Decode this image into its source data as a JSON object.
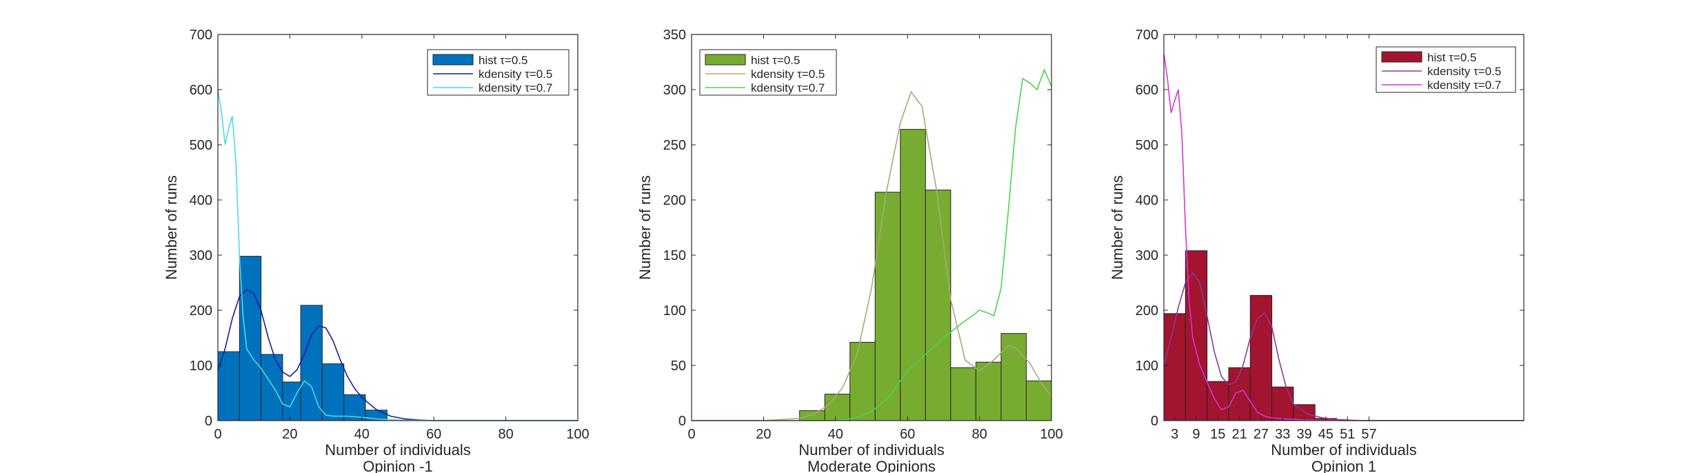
{
  "chart_data": [
    {
      "type": "bar",
      "bar_color": "#0072BD",
      "xlabel": "Number of individuals",
      "subtitle": "Opinion -1",
      "ylabel": "Number of runs",
      "xlim": [
        0,
        100
      ],
      "ylim": [
        0,
        700
      ],
      "xticks": [
        0,
        20,
        40,
        60,
        80,
        100
      ],
      "yticks": [
        0,
        100,
        200,
        300,
        400,
        500,
        600,
        700
      ],
      "grid": false,
      "legend_position": "top-right",
      "bins": [
        {
          "x0": 0,
          "x1": 6,
          "value": 125
        },
        {
          "x0": 6,
          "x1": 12,
          "value": 298
        },
        {
          "x0": 12,
          "x1": 18,
          "value": 120
        },
        {
          "x0": 18,
          "x1": 23,
          "value": 70
        },
        {
          "x0": 23,
          "x1": 29,
          "value": 209
        },
        {
          "x0": 29,
          "x1": 35,
          "value": 103
        },
        {
          "x0": 35,
          "x1": 41,
          "value": 47
        },
        {
          "x0": 41,
          "x1": 47,
          "value": 19
        }
      ],
      "series": [
        {
          "name": "kdensity τ=0.5",
          "color": "#1A1A9E",
          "x": [
            0,
            2,
            4,
            6,
            8,
            10,
            12,
            14,
            16,
            18,
            20,
            22,
            24,
            26,
            28,
            30,
            32,
            34,
            36,
            38,
            40,
            44,
            48,
            52,
            56,
            60,
            70,
            80,
            100
          ],
          "y": [
            90,
            130,
            185,
            225,
            238,
            230,
            200,
            150,
            110,
            88,
            80,
            92,
            120,
            155,
            172,
            168,
            145,
            110,
            80,
            58,
            42,
            20,
            8,
            3,
            1,
            0,
            0,
            0,
            0
          ]
        },
        {
          "name": "kdensity τ=0.7",
          "color": "#4DD9E6",
          "x": [
            0,
            1,
            2,
            3,
            4,
            5,
            6,
            7,
            8,
            10,
            12,
            14,
            16,
            18,
            20,
            22,
            24,
            26,
            28,
            30,
            32,
            36,
            40,
            44,
            50,
            60,
            70,
            80,
            100
          ],
          "y": [
            600,
            560,
            500,
            530,
            552,
            470,
            300,
            190,
            130,
            110,
            95,
            75,
            55,
            30,
            25,
            50,
            72,
            62,
            25,
            10,
            8,
            8,
            6,
            3,
            1,
            0,
            0,
            0,
            0
          ]
        }
      ],
      "legend": [
        "hist τ=0.5",
        "kdensity τ=0.5",
        "kdensity τ=0.7"
      ]
    },
    {
      "type": "bar",
      "bar_color": "#77AC30",
      "xlabel": "Number of individuals",
      "subtitle": "Moderate Opinions",
      "ylabel": "Number of runs",
      "xlim": [
        0,
        100
      ],
      "ylim": [
        0,
        350
      ],
      "xticks": [
        0,
        20,
        40,
        60,
        80,
        100
      ],
      "yticks": [
        0,
        50,
        100,
        150,
        200,
        250,
        300,
        350
      ],
      "grid": false,
      "legend_position": "top-left",
      "bins": [
        {
          "x0": 30,
          "x1": 37,
          "value": 9
        },
        {
          "x0": 37,
          "x1": 44,
          "value": 24
        },
        {
          "x0": 44,
          "x1": 51,
          "value": 71
        },
        {
          "x0": 51,
          "x1": 58,
          "value": 207
        },
        {
          "x0": 58,
          "x1": 65,
          "value": 264
        },
        {
          "x0": 65,
          "x1": 72,
          "value": 209
        },
        {
          "x0": 72,
          "x1": 79,
          "value": 48
        },
        {
          "x0": 79,
          "x1": 86,
          "value": 53
        },
        {
          "x0": 86,
          "x1": 93,
          "value": 79
        },
        {
          "x0": 93,
          "x1": 100,
          "value": 36
        }
      ],
      "series": [
        {
          "name": "kdensity τ=0.5",
          "color": "#A8A878",
          "x": [
            0,
            20,
            30,
            34,
            38,
            42,
            46,
            50,
            54,
            58,
            61,
            64,
            68,
            72,
            76,
            80,
            84,
            88,
            90,
            94,
            97,
            100
          ],
          "y": [
            0,
            0,
            2,
            6,
            14,
            30,
            60,
            120,
            205,
            270,
            298,
            285,
            210,
            110,
            55,
            45,
            55,
            68,
            66,
            52,
            35,
            22
          ]
        },
        {
          "name": "kdensity τ=0.7",
          "color": "#4DD24D",
          "x": [
            0,
            30,
            40,
            45,
            50,
            55,
            60,
            65,
            70,
            75,
            78,
            80,
            82,
            84,
            86,
            88,
            90,
            92,
            94,
            96,
            98,
            100
          ],
          "y": [
            0,
            0,
            0,
            2,
            8,
            22,
            45,
            60,
            75,
            88,
            95,
            100,
            98,
            95,
            120,
            190,
            265,
            310,
            306,
            300,
            318,
            303
          ]
        }
      ],
      "legend": [
        "hist τ=0.5",
        "kdensity τ=0.5",
        "kdensity τ=0.7"
      ]
    },
    {
      "type": "bar",
      "bar_color": "#A2142F",
      "xlabel": "Number of individuals",
      "subtitle": "Opinion 1",
      "ylabel": "Number of runs",
      "xlim": [
        0,
        100
      ],
      "ylim": [
        0,
        700
      ],
      "xticks": [
        3,
        9,
        15,
        21,
        27,
        33,
        39,
        45,
        51,
        57
      ],
      "yticks": [
        0,
        100,
        200,
        300,
        400,
        500,
        600,
        700
      ],
      "grid": false,
      "legend_position": "top-right",
      "bins": [
        {
          "x0": 0,
          "x1": 6,
          "value": 194
        },
        {
          "x0": 6,
          "x1": 12,
          "value": 308
        },
        {
          "x0": 12,
          "x1": 18,
          "value": 71
        },
        {
          "x0": 18,
          "x1": 24,
          "value": 96
        },
        {
          "x0": 24,
          "x1": 30,
          "value": 227
        },
        {
          "x0": 30,
          "x1": 36,
          "value": 61
        },
        {
          "x0": 36,
          "x1": 42,
          "value": 29
        },
        {
          "x0": 42,
          "x1": 48,
          "value": 4
        }
      ],
      "series": [
        {
          "name": "kdensity τ=0.5",
          "color": "#8B3A8B",
          "x": [
            0,
            2,
            4,
            6,
            8,
            10,
            12,
            14,
            16,
            18,
            20,
            22,
            24,
            26,
            28,
            30,
            32,
            34,
            36,
            40,
            44,
            48,
            55,
            65,
            100
          ],
          "y": [
            100,
            150,
            205,
            250,
            268,
            250,
            190,
            125,
            80,
            65,
            70,
            100,
            150,
            185,
            195,
            170,
            110,
            60,
            30,
            12,
            5,
            2,
            0,
            0,
            0
          ]
        },
        {
          "name": "kdensity τ=0.7",
          "color": "#D633D6",
          "x": [
            0,
            1,
            2,
            3,
            4,
            5,
            6,
            7,
            8,
            10,
            12,
            14,
            16,
            18,
            20,
            22,
            24,
            26,
            28,
            30,
            34,
            40,
            50,
            60,
            100
          ],
          "y": [
            665,
            620,
            558,
            580,
            600,
            520,
            350,
            220,
            150,
            100,
            70,
            40,
            20,
            25,
            50,
            55,
            35,
            15,
            8,
            5,
            3,
            1,
            0,
            0,
            0
          ]
        }
      ],
      "legend": [
        "hist τ=0.5",
        "kdensity τ=0.5",
        "kdensity τ=0.7"
      ]
    }
  ]
}
